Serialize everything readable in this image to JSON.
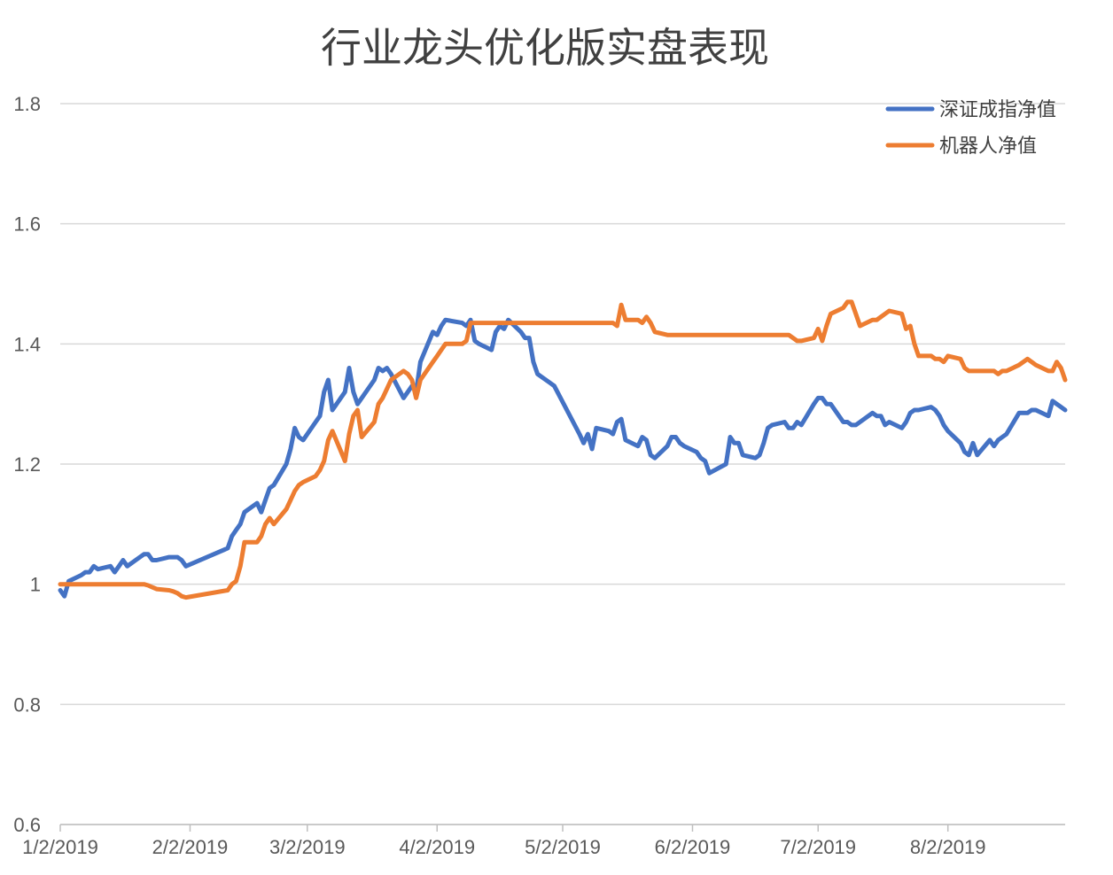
{
  "chart_data": {
    "type": "line",
    "title": "行业龙头优化版实盘表现",
    "xlabel": "",
    "ylabel": "",
    "ylim": [
      0.6,
      1.8
    ],
    "y_ticks": [
      "0.6",
      "0.8",
      "1",
      "1.2",
      "1.4",
      "1.6",
      "1.8"
    ],
    "x_ticks": [
      "1/2/2019",
      "2/2/2019",
      "3/2/2019",
      "4/2/2019",
      "5/2/2019",
      "6/2/2019",
      "7/2/2019",
      "8/2/2019"
    ],
    "x_tick_dates": [
      "2019-01-02",
      "2019-02-02",
      "2019-03-02",
      "2019-04-02",
      "2019-05-02",
      "2019-06-02",
      "2019-07-02",
      "2019-08-02"
    ],
    "xlim": [
      "2019-01-02",
      "2019-08-30"
    ],
    "grid": true,
    "legend": "top-right",
    "series": [
      {
        "name": "深证成指净值",
        "color": "#4472C4",
        "points": [
          [
            "2019-01-02",
            0.99
          ],
          [
            "2019-01-03",
            0.98
          ],
          [
            "2019-01-04",
            1.005
          ],
          [
            "2019-01-07",
            1.015
          ],
          [
            "2019-01-08",
            1.02
          ],
          [
            "2019-01-09",
            1.02
          ],
          [
            "2019-01-10",
            1.03
          ],
          [
            "2019-01-11",
            1.025
          ],
          [
            "2019-01-14",
            1.03
          ],
          [
            "2019-01-15",
            1.02
          ],
          [
            "2019-01-16",
            1.03
          ],
          [
            "2019-01-17",
            1.04
          ],
          [
            "2019-01-18",
            1.03
          ],
          [
            "2019-01-21",
            1.045
          ],
          [
            "2019-01-22",
            1.05
          ],
          [
            "2019-01-23",
            1.05
          ],
          [
            "2019-01-24",
            1.04
          ],
          [
            "2019-01-25",
            1.04
          ],
          [
            "2019-01-28",
            1.045
          ],
          [
            "2019-01-29",
            1.045
          ],
          [
            "2019-01-30",
            1.045
          ],
          [
            "2019-01-31",
            1.04
          ],
          [
            "2019-02-01",
            1.03
          ],
          [
            "2019-02-11",
            1.06
          ],
          [
            "2019-02-12",
            1.08
          ],
          [
            "2019-02-13",
            1.09
          ],
          [
            "2019-02-14",
            1.1
          ],
          [
            "2019-02-15",
            1.12
          ],
          [
            "2019-02-18",
            1.135
          ],
          [
            "2019-02-19",
            1.12
          ],
          [
            "2019-02-20",
            1.14
          ],
          [
            "2019-02-21",
            1.16
          ],
          [
            "2019-02-22",
            1.165
          ],
          [
            "2019-02-25",
            1.2
          ],
          [
            "2019-02-26",
            1.225
          ],
          [
            "2019-02-27",
            1.26
          ],
          [
            "2019-02-28",
            1.245
          ],
          [
            "2019-03-01",
            1.24
          ],
          [
            "2019-03-04",
            1.27
          ],
          [
            "2019-03-05",
            1.28
          ],
          [
            "2019-03-06",
            1.32
          ],
          [
            "2019-03-07",
            1.34
          ],
          [
            "2019-03-08",
            1.29
          ],
          [
            "2019-03-11",
            1.32
          ],
          [
            "2019-03-12",
            1.36
          ],
          [
            "2019-03-13",
            1.32
          ],
          [
            "2019-03-14",
            1.3
          ],
          [
            "2019-03-15",
            1.31
          ],
          [
            "2019-03-18",
            1.34
          ],
          [
            "2019-03-19",
            1.36
          ],
          [
            "2019-03-20",
            1.355
          ],
          [
            "2019-03-21",
            1.36
          ],
          [
            "2019-03-22",
            1.35
          ],
          [
            "2019-03-25",
            1.31
          ],
          [
            "2019-03-26",
            1.32
          ],
          [
            "2019-03-27",
            1.33
          ],
          [
            "2019-03-28",
            1.32
          ],
          [
            "2019-03-29",
            1.37
          ],
          [
            "2019-04-01",
            1.42
          ],
          [
            "2019-04-02",
            1.415
          ],
          [
            "2019-04-03",
            1.43
          ],
          [
            "2019-04-04",
            1.44
          ],
          [
            "2019-04-08",
            1.435
          ],
          [
            "2019-04-09",
            1.43
          ],
          [
            "2019-04-10",
            1.44
          ],
          [
            "2019-04-11",
            1.405
          ],
          [
            "2019-04-12",
            1.4
          ],
          [
            "2019-04-15",
            1.39
          ],
          [
            "2019-04-16",
            1.42
          ],
          [
            "2019-04-17",
            1.43
          ],
          [
            "2019-04-18",
            1.425
          ],
          [
            "2019-04-19",
            1.44
          ],
          [
            "2019-04-22",
            1.42
          ],
          [
            "2019-04-23",
            1.41
          ],
          [
            "2019-04-24",
            1.41
          ],
          [
            "2019-04-25",
            1.37
          ],
          [
            "2019-04-26",
            1.35
          ],
          [
            "2019-04-29",
            1.335
          ],
          [
            "2019-04-30",
            1.33
          ],
          [
            "2019-05-06",
            1.25
          ],
          [
            "2019-05-07",
            1.235
          ],
          [
            "2019-05-08",
            1.25
          ],
          [
            "2019-05-09",
            1.225
          ],
          [
            "2019-05-10",
            1.26
          ],
          [
            "2019-05-13",
            1.255
          ],
          [
            "2019-05-14",
            1.25
          ],
          [
            "2019-05-15",
            1.27
          ],
          [
            "2019-05-16",
            1.275
          ],
          [
            "2019-05-17",
            1.24
          ],
          [
            "2019-05-20",
            1.23
          ],
          [
            "2019-05-21",
            1.245
          ],
          [
            "2019-05-22",
            1.24
          ],
          [
            "2019-05-23",
            1.215
          ],
          [
            "2019-05-24",
            1.21
          ],
          [
            "2019-05-27",
            1.23
          ],
          [
            "2019-05-28",
            1.245
          ],
          [
            "2019-05-29",
            1.245
          ],
          [
            "2019-05-30",
            1.235
          ],
          [
            "2019-05-31",
            1.23
          ],
          [
            "2019-06-03",
            1.22
          ],
          [
            "2019-06-04",
            1.21
          ],
          [
            "2019-06-05",
            1.205
          ],
          [
            "2019-06-06",
            1.185
          ],
          [
            "2019-06-10",
            1.2
          ],
          [
            "2019-06-11",
            1.245
          ],
          [
            "2019-06-12",
            1.235
          ],
          [
            "2019-06-13",
            1.235
          ],
          [
            "2019-06-14",
            1.215
          ],
          [
            "2019-06-17",
            1.21
          ],
          [
            "2019-06-18",
            1.215
          ],
          [
            "2019-06-19",
            1.235
          ],
          [
            "2019-06-20",
            1.26
          ],
          [
            "2019-06-21",
            1.265
          ],
          [
            "2019-06-24",
            1.27
          ],
          [
            "2019-06-25",
            1.26
          ],
          [
            "2019-06-26",
            1.26
          ],
          [
            "2019-06-27",
            1.27
          ],
          [
            "2019-06-28",
            1.265
          ],
          [
            "2019-07-01",
            1.3
          ],
          [
            "2019-07-02",
            1.31
          ],
          [
            "2019-07-03",
            1.31
          ],
          [
            "2019-07-04",
            1.3
          ],
          [
            "2019-07-05",
            1.3
          ],
          [
            "2019-07-08",
            1.27
          ],
          [
            "2019-07-09",
            1.27
          ],
          [
            "2019-07-10",
            1.265
          ],
          [
            "2019-07-11",
            1.265
          ],
          [
            "2019-07-12",
            1.27
          ],
          [
            "2019-07-15",
            1.285
          ],
          [
            "2019-07-16",
            1.28
          ],
          [
            "2019-07-17",
            1.28
          ],
          [
            "2019-07-18",
            1.265
          ],
          [
            "2019-07-19",
            1.27
          ],
          [
            "2019-07-22",
            1.26
          ],
          [
            "2019-07-23",
            1.27
          ],
          [
            "2019-07-24",
            1.285
          ],
          [
            "2019-07-25",
            1.29
          ],
          [
            "2019-07-26",
            1.29
          ],
          [
            "2019-07-29",
            1.295
          ],
          [
            "2019-07-30",
            1.29
          ],
          [
            "2019-07-31",
            1.28
          ],
          [
            "2019-08-01",
            1.265
          ],
          [
            "2019-08-02",
            1.255
          ],
          [
            "2019-08-05",
            1.235
          ],
          [
            "2019-08-06",
            1.22
          ],
          [
            "2019-08-07",
            1.215
          ],
          [
            "2019-08-08",
            1.235
          ],
          [
            "2019-08-09",
            1.215
          ],
          [
            "2019-08-12",
            1.24
          ],
          [
            "2019-08-13",
            1.23
          ],
          [
            "2019-08-14",
            1.24
          ],
          [
            "2019-08-15",
            1.245
          ],
          [
            "2019-08-16",
            1.25
          ],
          [
            "2019-08-19",
            1.285
          ],
          [
            "2019-08-20",
            1.285
          ],
          [
            "2019-08-21",
            1.285
          ],
          [
            "2019-08-22",
            1.29
          ],
          [
            "2019-08-23",
            1.29
          ],
          [
            "2019-08-26",
            1.28
          ],
          [
            "2019-08-27",
            1.305
          ],
          [
            "2019-08-28",
            1.3
          ],
          [
            "2019-08-29",
            1.295
          ],
          [
            "2019-08-30",
            1.29
          ]
        ]
      },
      {
        "name": "机器人净值",
        "color": "#ED7D31",
        "points": [
          [
            "2019-01-02",
            1.0
          ],
          [
            "2019-01-22",
            1.0
          ],
          [
            "2019-01-23",
            0.998
          ],
          [
            "2019-01-24",
            0.995
          ],
          [
            "2019-01-25",
            0.992
          ],
          [
            "2019-01-28",
            0.99
          ],
          [
            "2019-01-29",
            0.988
          ],
          [
            "2019-01-30",
            0.985
          ],
          [
            "2019-01-31",
            0.98
          ],
          [
            "2019-02-01",
            0.978
          ],
          [
            "2019-02-11",
            0.99
          ],
          [
            "2019-02-12",
            1.0
          ],
          [
            "2019-02-13",
            1.005
          ],
          [
            "2019-02-14",
            1.03
          ],
          [
            "2019-02-15",
            1.07
          ],
          [
            "2019-02-18",
            1.07
          ],
          [
            "2019-02-19",
            1.08
          ],
          [
            "2019-02-20",
            1.1
          ],
          [
            "2019-02-21",
            1.11
          ],
          [
            "2019-02-22",
            1.1
          ],
          [
            "2019-02-25",
            1.125
          ],
          [
            "2019-02-26",
            1.14
          ],
          [
            "2019-02-27",
            1.155
          ],
          [
            "2019-02-28",
            1.165
          ],
          [
            "2019-03-01",
            1.17
          ],
          [
            "2019-03-04",
            1.18
          ],
          [
            "2019-03-05",
            1.19
          ],
          [
            "2019-03-06",
            1.205
          ],
          [
            "2019-03-07",
            1.24
          ],
          [
            "2019-03-08",
            1.255
          ],
          [
            "2019-03-11",
            1.205
          ],
          [
            "2019-03-12",
            1.25
          ],
          [
            "2019-03-13",
            1.28
          ],
          [
            "2019-03-14",
            1.29
          ],
          [
            "2019-03-15",
            1.245
          ],
          [
            "2019-03-18",
            1.27
          ],
          [
            "2019-03-19",
            1.3
          ],
          [
            "2019-03-20",
            1.31
          ],
          [
            "2019-03-21",
            1.325
          ],
          [
            "2019-03-22",
            1.34
          ],
          [
            "2019-03-25",
            1.355
          ],
          [
            "2019-03-26",
            1.35
          ],
          [
            "2019-03-27",
            1.34
          ],
          [
            "2019-03-28",
            1.31
          ],
          [
            "2019-03-29",
            1.34
          ],
          [
            "2019-04-01",
            1.37
          ],
          [
            "2019-04-02",
            1.38
          ],
          [
            "2019-04-03",
            1.39
          ],
          [
            "2019-04-04",
            1.4
          ],
          [
            "2019-04-08",
            1.4
          ],
          [
            "2019-04-09",
            1.405
          ],
          [
            "2019-04-10",
            1.435
          ],
          [
            "2019-04-11",
            1.435
          ],
          [
            "2019-05-14",
            1.435
          ],
          [
            "2019-05-15",
            1.43
          ],
          [
            "2019-05-16",
            1.465
          ],
          [
            "2019-05-17",
            1.44
          ],
          [
            "2019-05-20",
            1.44
          ],
          [
            "2019-05-21",
            1.435
          ],
          [
            "2019-05-22",
            1.445
          ],
          [
            "2019-05-23",
            1.435
          ],
          [
            "2019-05-24",
            1.42
          ],
          [
            "2019-05-27",
            1.415
          ],
          [
            "2019-06-21",
            1.415
          ],
          [
            "2019-06-24",
            1.415
          ],
          [
            "2019-06-25",
            1.415
          ],
          [
            "2019-06-26",
            1.41
          ],
          [
            "2019-06-27",
            1.405
          ],
          [
            "2019-06-28",
            1.405
          ],
          [
            "2019-07-01",
            1.41
          ],
          [
            "2019-07-02",
            1.425
          ],
          [
            "2019-07-03",
            1.405
          ],
          [
            "2019-07-04",
            1.43
          ],
          [
            "2019-07-05",
            1.45
          ],
          [
            "2019-07-08",
            1.46
          ],
          [
            "2019-07-09",
            1.47
          ],
          [
            "2019-07-10",
            1.47
          ],
          [
            "2019-07-11",
            1.45
          ],
          [
            "2019-07-12",
            1.43
          ],
          [
            "2019-07-15",
            1.44
          ],
          [
            "2019-07-16",
            1.44
          ],
          [
            "2019-07-17",
            1.445
          ],
          [
            "2019-07-18",
            1.45
          ],
          [
            "2019-07-19",
            1.455
          ],
          [
            "2019-07-22",
            1.45
          ],
          [
            "2019-07-23",
            1.425
          ],
          [
            "2019-07-24",
            1.43
          ],
          [
            "2019-07-25",
            1.4
          ],
          [
            "2019-07-26",
            1.38
          ],
          [
            "2019-07-29",
            1.38
          ],
          [
            "2019-07-30",
            1.375
          ],
          [
            "2019-07-31",
            1.375
          ],
          [
            "2019-08-01",
            1.37
          ],
          [
            "2019-08-02",
            1.38
          ],
          [
            "2019-08-05",
            1.375
          ],
          [
            "2019-08-06",
            1.36
          ],
          [
            "2019-08-07",
            1.355
          ],
          [
            "2019-08-08",
            1.355
          ],
          [
            "2019-08-13",
            1.355
          ],
          [
            "2019-08-14",
            1.35
          ],
          [
            "2019-08-15",
            1.355
          ],
          [
            "2019-08-16",
            1.355
          ],
          [
            "2019-08-19",
            1.365
          ],
          [
            "2019-08-20",
            1.37
          ],
          [
            "2019-08-21",
            1.375
          ],
          [
            "2019-08-22",
            1.37
          ],
          [
            "2019-08-23",
            1.365
          ],
          [
            "2019-08-26",
            1.355
          ],
          [
            "2019-08-27",
            1.355
          ],
          [
            "2019-08-28",
            1.37
          ],
          [
            "2019-08-29",
            1.36
          ],
          [
            "2019-08-30",
            1.34
          ]
        ]
      }
    ]
  }
}
